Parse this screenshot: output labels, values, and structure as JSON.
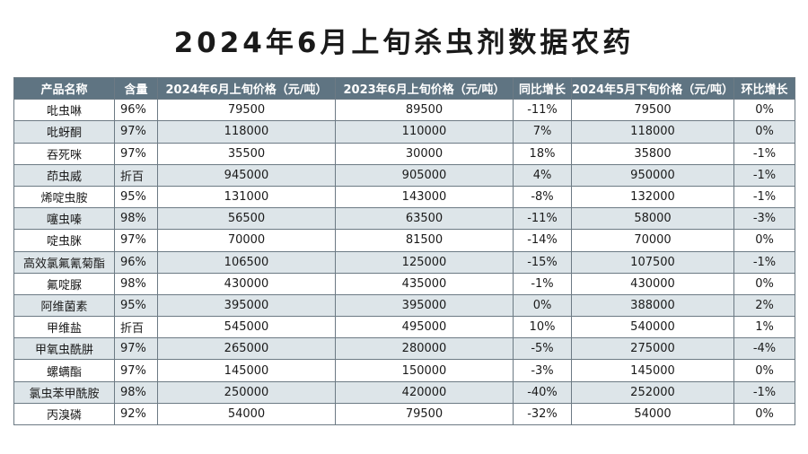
{
  "title": "2024年6月上旬杀虫剂数据农药",
  "headers": [
    "产品名称",
    "含量",
    "2024年6月上旬价格（元/吨）",
    "2023年6月上旬价格（元/吨）",
    "同比增长",
    "2024年5月下旬价格（元/吨）",
    "环比增长"
  ],
  "rows": [
    [
      "吡虫啉",
      "96%",
      "79500",
      "89500",
      "-11%",
      "79500",
      "0%"
    ],
    [
      "吡蚜酮",
      "97%",
      "118000",
      "110000",
      "7%",
      "118000",
      "0%"
    ],
    [
      "吞死咪",
      "97%",
      "35500",
      "30000",
      "18%",
      "35800",
      "-1%"
    ],
    [
      "茚虫威",
      "折百",
      "945000",
      "905000",
      "4%",
      "950000",
      "-1%"
    ],
    [
      "烯啶虫胺",
      "95%",
      "131000",
      "143000",
      "-8%",
      "132000",
      "-1%"
    ],
    [
      "噻虫嗪",
      "98%",
      "56500",
      "63500",
      "-11%",
      "58000",
      "-3%"
    ],
    [
      "啶虫脒",
      "97%",
      "70000",
      "81500",
      "-14%",
      "70000",
      "0%"
    ],
    [
      "高效氯氟氰菊酯",
      "96%",
      "106500",
      "125000",
      "-15%",
      "107500",
      "-1%"
    ],
    [
      "氟啶脲",
      "98%",
      "430000",
      "435000",
      "-1%",
      "430000",
      "0%"
    ],
    [
      "阿维菌素",
      "95%",
      "395000",
      "395000",
      "0%",
      "388000",
      "2%"
    ],
    [
      "甲维盐",
      "折百",
      "545000",
      "495000",
      "10%",
      "540000",
      "1%"
    ],
    [
      "甲氧虫酰肼",
      "97%",
      "265000",
      "280000",
      "-5%",
      "275000",
      "-4%"
    ],
    [
      "螺螨酯",
      "97%",
      "145000",
      "150000",
      "-3%",
      "145000",
      "0%"
    ],
    [
      "氯虫苯甲酰胺",
      "98%",
      "250000",
      "420000",
      "-40%",
      "252000",
      "-1%"
    ],
    [
      "丙溴磷",
      "92%",
      "54000",
      "79500",
      "-32%",
      "54000",
      "0%"
    ]
  ]
}
